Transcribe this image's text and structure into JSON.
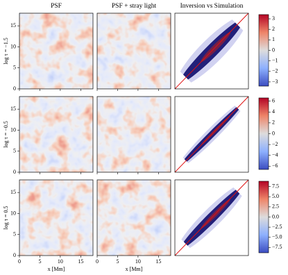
{
  "columns": [
    "PSF",
    "PSF + stray light",
    "Inversion vs Simulation"
  ],
  "map_lim": [
    0,
    18
  ],
  "map_ticks": [
    0,
    5,
    10,
    15
  ],
  "x_label": "x [Mm]",
  "rows": [
    {
      "label": "log τ = −1.5",
      "colorbar_lim": [
        -3.4,
        3.4
      ],
      "colorbar_ticks": [
        {
          "value": 3,
          "label": "3"
        },
        {
          "value": 2,
          "label": "2"
        },
        {
          "value": 1,
          "label": "1"
        },
        {
          "value": 0,
          "label": "0"
        },
        {
          "value": -1,
          "label": "−1"
        },
        {
          "value": -2,
          "label": "−2"
        },
        {
          "value": -3,
          "label": "−3"
        }
      ]
    },
    {
      "label": "log τ = −0.5",
      "colorbar_lim": [
        -6.6,
        6.6
      ],
      "colorbar_ticks": [
        {
          "value": 6,
          "label": "6"
        },
        {
          "value": 4,
          "label": "4"
        },
        {
          "value": 2,
          "label": "2"
        },
        {
          "value": 0,
          "label": "0"
        },
        {
          "value": -2,
          "label": "−2"
        },
        {
          "value": -4,
          "label": "−4"
        },
        {
          "value": -6,
          "label": "−6"
        }
      ]
    },
    {
      "label": "log τ = 0.5",
      "colorbar_lim": [
        -8.8,
        8.8
      ],
      "colorbar_ticks": [
        {
          "value": 7.5,
          "label": "7.5"
        },
        {
          "value": 5,
          "label": "5.0"
        },
        {
          "value": 2.5,
          "label": "2.5"
        },
        {
          "value": 0,
          "label": "0.0"
        },
        {
          "value": -2.5,
          "label": "−2.5"
        },
        {
          "value": -5,
          "label": "−5.0"
        },
        {
          "value": -7.5,
          "label": "−7.5"
        }
      ]
    }
  ]
}
